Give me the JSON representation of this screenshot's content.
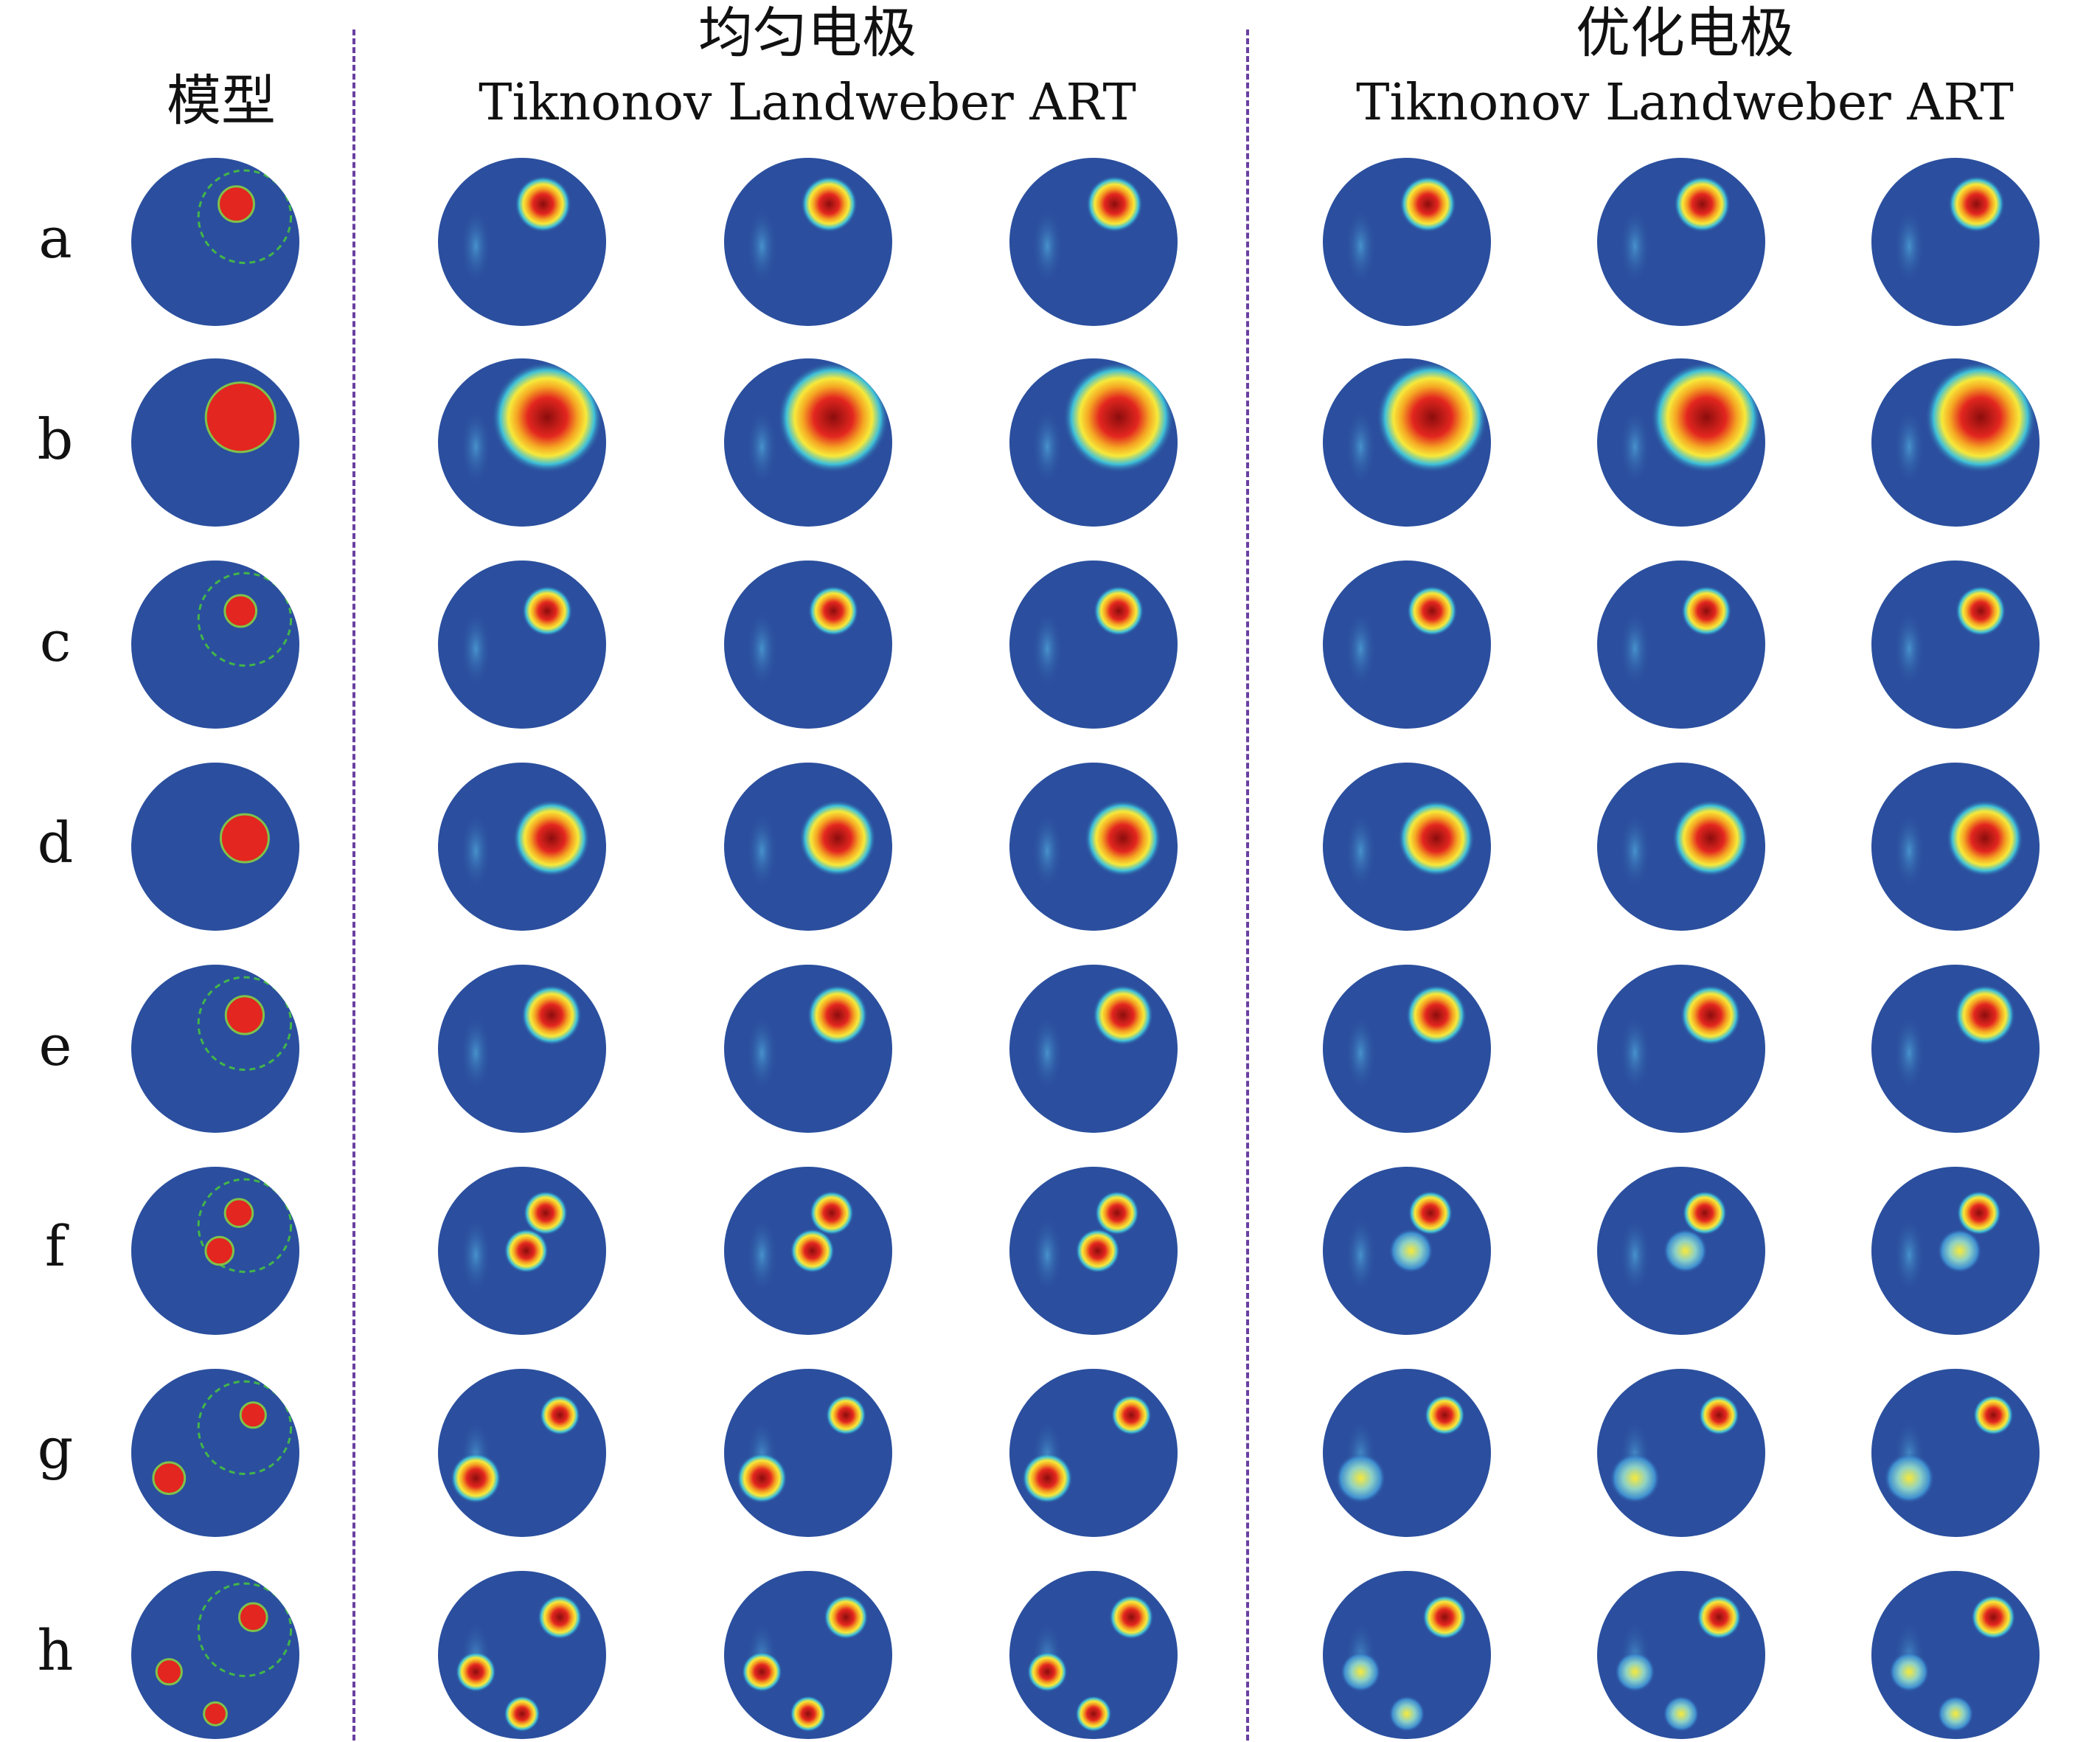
{
  "headers": {
    "model": "模型",
    "uniform": "均匀电极",
    "optimized": "优化电极",
    "methods_uniform": "Tiknonov Landweber ART",
    "methods_optimized": "Tiknonov Landweber ART"
  },
  "rows": [
    "a",
    "b",
    "c",
    "d",
    "e",
    "f",
    "g",
    "h"
  ],
  "colors": {
    "background": "#2b4f9e",
    "object": "#e3261f",
    "object_outline": "#7fc24a",
    "guide_circle": "#43b649",
    "divider": "#6a3fa0"
  },
  "columns": [
    "model",
    "uniform-tiknonov",
    "uniform-landweber",
    "uniform-art",
    "optimized-tiknonov",
    "optimized-landweber",
    "optimized-art"
  ]
}
